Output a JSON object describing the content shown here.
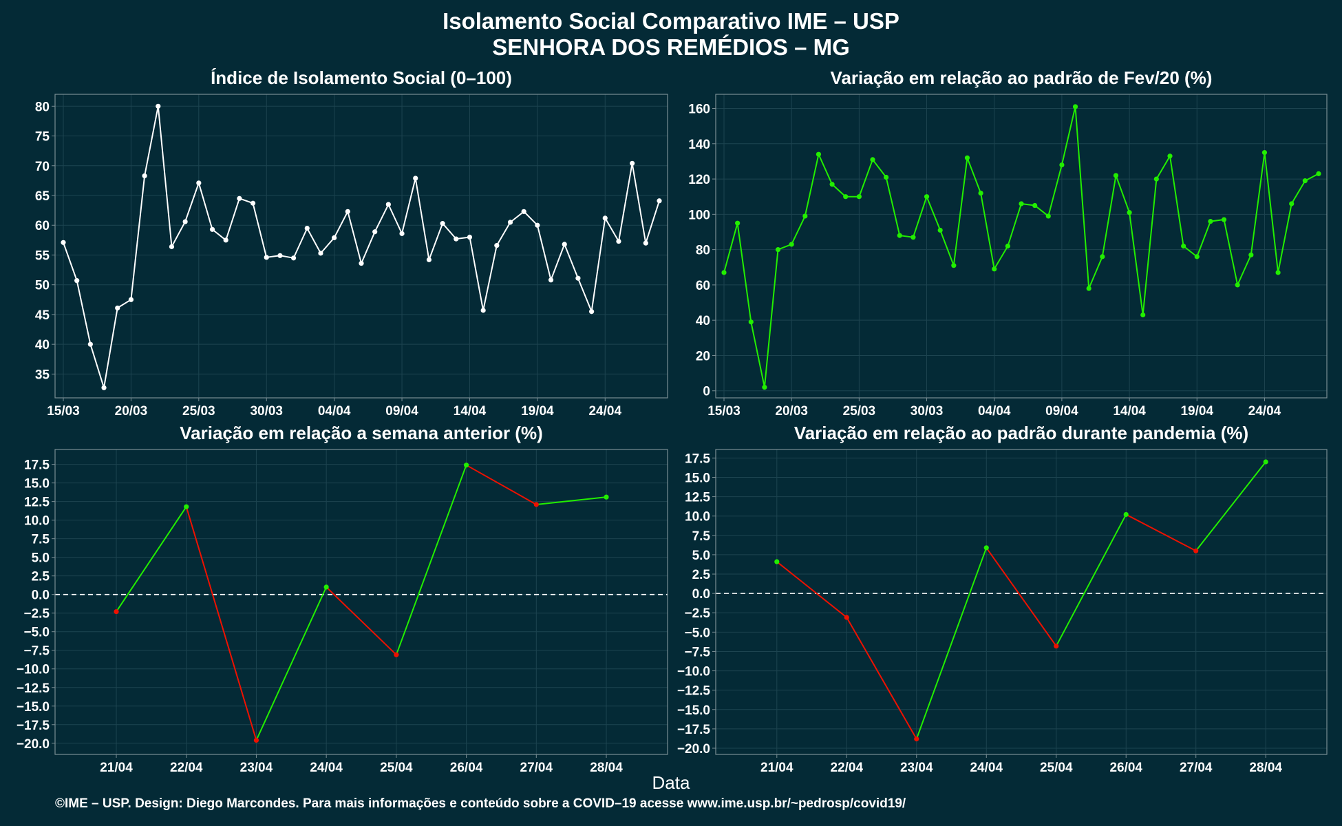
{
  "title": {
    "line1": "Isolamento Social Comparativo IME – USP",
    "line2": "SENHORA DOS REMÉDIOS – MG"
  },
  "xlabel": "Data",
  "footer": "©IME – USP. Design: Diego Marcondes. Para mais informações e conteúdo sobre a COVID–19 acesse www.ime.usp.br/~pedrosp/covid19/",
  "colors": {
    "background": "#042a36",
    "grid": "#1d4450",
    "frame": "#7a8e94",
    "white_line": "#ffffff",
    "green": "#22ee00",
    "red": "#ee1100"
  },
  "chart_data": [
    {
      "type": "line",
      "title": "Índice de Isolamento Social (0–100)",
      "x_start": "15/03",
      "x_tick_labels": [
        "15/03",
        "20/03",
        "25/03",
        "30/03",
        "04/04",
        "09/04",
        "14/04",
        "19/04",
        "24/04"
      ],
      "y_ticks": [
        35,
        40,
        45,
        50,
        55,
        60,
        65,
        70,
        75,
        80
      ],
      "ylim": [
        31,
        82
      ],
      "series": [
        {
          "color": "white",
          "values": [
            57.1,
            50.7,
            40.0,
            32.7,
            46.1,
            47.5,
            68.3,
            80.0,
            56.4,
            60.6,
            67.1,
            59.3,
            57.5,
            64.5,
            63.7,
            54.6,
            54.9,
            54.5,
            59.5,
            55.3,
            57.9,
            62.3,
            53.6,
            58.9,
            63.5,
            58.6,
            67.9,
            54.2,
            60.3,
            57.7,
            58.0,
            45.7,
            56.6,
            60.5,
            62.3,
            60.0,
            50.8,
            56.8,
            51.1,
            45.5,
            61.2,
            57.3,
            70.4,
            57.0,
            64.1
          ]
        }
      ],
      "grid": true
    },
    {
      "type": "line",
      "title": "Variação em relação ao padrão de Fev/20 (%)",
      "x_start": "15/03",
      "x_tick_labels": [
        "15/03",
        "20/03",
        "25/03",
        "30/03",
        "04/04",
        "09/04",
        "14/04",
        "19/04",
        "24/04"
      ],
      "y_ticks": [
        0,
        20,
        40,
        60,
        80,
        100,
        120,
        140,
        160
      ],
      "ylim": [
        -4,
        168
      ],
      "series": [
        {
          "color": "green",
          "values": [
            67,
            95,
            39,
            2,
            80,
            83,
            99,
            134,
            117,
            110,
            110,
            131,
            121,
            88,
            87,
            110,
            91,
            71,
            132,
            112,
            69,
            82,
            106,
            105,
            99,
            128,
            161,
            58,
            76,
            122,
            101,
            43,
            120,
            133,
            82,
            76,
            96,
            97,
            60,
            77,
            135,
            67,
            106,
            119,
            123
          ]
        }
      ],
      "grid": true
    },
    {
      "type": "line",
      "title": "Variação em relação a semana anterior (%)",
      "categories": [
        "21/04",
        "22/04",
        "23/04",
        "24/04",
        "25/04",
        "26/04",
        "27/04",
        "28/04"
      ],
      "values": [
        -2.3,
        11.8,
        -19.6,
        1.0,
        -8.1,
        17.4,
        12.1,
        13.1
      ],
      "y_ticks": [
        -20.0,
        -17.5,
        -15.0,
        -12.5,
        -10.0,
        -7.5,
        -5.0,
        -2.5,
        0.0,
        2.5,
        5.0,
        7.5,
        10.0,
        12.5,
        15.0,
        17.5
      ],
      "ylim": [
        -21.5,
        19.5
      ],
      "segment_colors": "green when rising, red when falling",
      "reference_line": 0,
      "grid": true
    },
    {
      "type": "line",
      "title": "Variação em relação ao padrão durante pandemia (%)",
      "categories": [
        "21/04",
        "22/04",
        "23/04",
        "24/04",
        "25/04",
        "26/04",
        "27/04",
        "28/04"
      ],
      "values": [
        4.1,
        -3.1,
        -18.8,
        5.9,
        -6.8,
        10.2,
        5.5,
        17.0
      ],
      "y_ticks": [
        -20.0,
        -17.5,
        -15.0,
        -12.5,
        -10.0,
        -7.5,
        -5.0,
        -2.5,
        0.0,
        2.5,
        5.0,
        7.5,
        10.0,
        12.5,
        15.0,
        17.5
      ],
      "ylim": [
        -20.8,
        18.6
      ],
      "segment_colors": "green when rising, red when falling",
      "reference_line": 0,
      "grid": true
    }
  ]
}
